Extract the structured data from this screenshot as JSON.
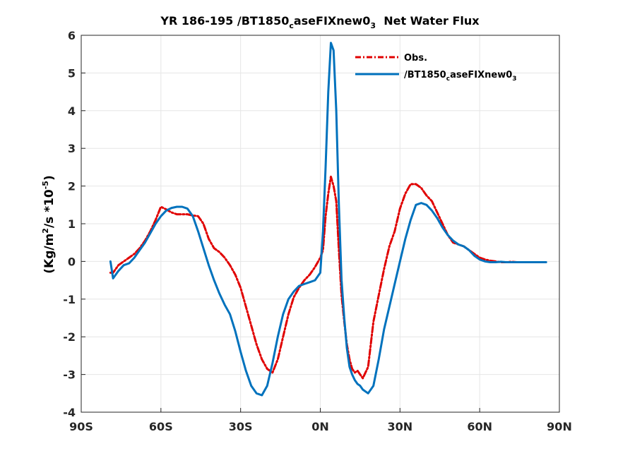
{
  "chart_data": {
    "type": "line",
    "title": {
      "prefix": "YR 186-195 /BT1850",
      "sub": "c",
      "mid": "aseFIXnew0",
      "sub2": "3",
      "suffix": "  Net Water Flux"
    },
    "ylabel": {
      "a": "(Kg/m",
      "sup1": "2",
      "b": "/s *10",
      "sup2": "-5",
      "c": ")"
    },
    "xlim": [
      -90,
      90
    ],
    "ylim": [
      -4,
      6
    ],
    "grid": true,
    "x_ticks": [
      {
        "value": -90,
        "label": "90S"
      },
      {
        "value": -60,
        "label": "60S"
      },
      {
        "value": -30,
        "label": "30S"
      },
      {
        "value": 0,
        "label": "0N"
      },
      {
        "value": 30,
        "label": "30N"
      },
      {
        "value": 60,
        "label": "60N"
      },
      {
        "value": 90,
        "label": "90N"
      }
    ],
    "y_ticks": [
      {
        "value": -4,
        "label": "-4"
      },
      {
        "value": -3,
        "label": "-3"
      },
      {
        "value": -2,
        "label": "-2"
      },
      {
        "value": -1,
        "label": "-1"
      },
      {
        "value": 0,
        "label": "0"
      },
      {
        "value": 1,
        "label": "1"
      },
      {
        "value": 2,
        "label": "2"
      },
      {
        "value": 3,
        "label": "3"
      },
      {
        "value": 4,
        "label": "4"
      },
      {
        "value": 5,
        "label": "5"
      },
      {
        "value": 6,
        "label": "6"
      }
    ],
    "legend_position": "top-right",
    "series": [
      {
        "name": "Obs.",
        "color": "#e00000",
        "style": "dash-dot",
        "x": [
          -79,
          -78,
          -76,
          -74,
          -72,
          -70,
          -68,
          -66,
          -64,
          -62,
          -60,
          -58,
          -56,
          -54,
          -52,
          -50,
          -48,
          -46,
          -44,
          -42,
          -40,
          -38,
          -36,
          -34,
          -32,
          -30,
          -28,
          -26,
          -24,
          -22,
          -20,
          -18,
          -16,
          -14,
          -12,
          -10,
          -8,
          -6,
          -4,
          -2,
          0,
          1,
          2,
          3,
          4,
          5,
          6,
          7,
          8,
          9,
          10,
          11,
          12,
          13,
          14,
          15,
          16,
          18,
          20,
          22,
          24,
          26,
          28,
          30,
          32,
          34,
          36,
          38,
          40,
          42,
          44,
          46,
          48,
          50,
          52,
          54,
          56,
          58,
          60,
          62,
          64,
          66,
          68,
          70,
          72,
          74,
          76,
          78,
          80,
          82,
          85
        ],
        "values": [
          -0.3,
          -0.3,
          -0.1,
          0.0,
          0.1,
          0.2,
          0.35,
          0.55,
          0.8,
          1.1,
          1.45,
          1.38,
          1.3,
          1.25,
          1.25,
          1.25,
          1.22,
          1.2,
          1.0,
          0.6,
          0.35,
          0.25,
          0.1,
          -0.1,
          -0.35,
          -0.7,
          -1.2,
          -1.7,
          -2.2,
          -2.6,
          -2.85,
          -2.95,
          -2.6,
          -2.0,
          -1.4,
          -0.95,
          -0.7,
          -0.5,
          -0.35,
          -0.15,
          0.1,
          0.3,
          1.2,
          1.8,
          2.25,
          2.0,
          1.6,
          0.3,
          -0.9,
          -1.6,
          -2.2,
          -2.6,
          -2.85,
          -2.95,
          -2.9,
          -3.0,
          -3.1,
          -2.8,
          -1.6,
          -0.9,
          -0.2,
          0.4,
          0.8,
          1.4,
          1.8,
          2.05,
          2.05,
          1.95,
          1.75,
          1.6,
          1.3,
          1.0,
          0.7,
          0.5,
          0.45,
          0.4,
          0.3,
          0.2,
          0.1,
          0.05,
          0.02,
          0.0,
          -0.02,
          -0.02,
          -0.01,
          -0.02,
          -0.02,
          -0.02,
          -0.02,
          -0.02,
          -0.02
        ]
      },
      {
        "name": "/BT1850",
        "name_sub": "c",
        "name_mid": "aseFIXnew0",
        "name_sub2": "3",
        "color": "#0072bd",
        "style": "solid",
        "x": [
          -79,
          -78,
          -76,
          -74,
          -72,
          -70,
          -68,
          -66,
          -64,
          -62,
          -60,
          -58,
          -56,
          -54,
          -52,
          -50,
          -48,
          -46,
          -44,
          -42,
          -40,
          -38,
          -36,
          -34,
          -32,
          -30,
          -28,
          -26,
          -24,
          -22,
          -20,
          -18,
          -16,
          -14,
          -12,
          -10,
          -8,
          -6,
          -4,
          -2,
          0,
          1,
          2,
          3,
          4,
          5,
          6,
          7,
          8,
          9,
          10,
          11,
          12,
          13,
          14,
          15,
          16,
          18,
          20,
          22,
          24,
          26,
          28,
          30,
          32,
          34,
          36,
          38,
          40,
          42,
          44,
          46,
          48,
          50,
          52,
          54,
          56,
          58,
          60,
          62,
          64,
          66,
          68,
          70,
          72,
          74,
          76,
          78,
          80,
          82,
          85
        ],
        "values": [
          0.0,
          -0.45,
          -0.25,
          -0.1,
          -0.05,
          0.1,
          0.3,
          0.5,
          0.75,
          1.0,
          1.2,
          1.35,
          1.42,
          1.45,
          1.45,
          1.4,
          1.2,
          0.8,
          0.35,
          -0.1,
          -0.5,
          -0.85,
          -1.15,
          -1.4,
          -1.85,
          -2.4,
          -2.9,
          -3.3,
          -3.5,
          -3.55,
          -3.3,
          -2.7,
          -2.0,
          -1.4,
          -1.0,
          -0.8,
          -0.65,
          -0.6,
          -0.55,
          -0.5,
          -0.3,
          0.8,
          2.5,
          4.5,
          5.8,
          5.6,
          4.0,
          1.5,
          -0.5,
          -1.5,
          -2.3,
          -2.8,
          -3.0,
          -3.15,
          -3.25,
          -3.3,
          -3.4,
          -3.5,
          -3.3,
          -2.6,
          -1.8,
          -1.2,
          -0.6,
          0.0,
          0.6,
          1.1,
          1.5,
          1.55,
          1.5,
          1.35,
          1.15,
          0.9,
          0.7,
          0.55,
          0.45,
          0.4,
          0.3,
          0.15,
          0.05,
          0.0,
          -0.02,
          -0.02,
          -0.01,
          -0.02,
          -0.02,
          -0.02,
          -0.02,
          -0.02,
          -0.02,
          -0.02,
          -0.02
        ]
      }
    ]
  }
}
